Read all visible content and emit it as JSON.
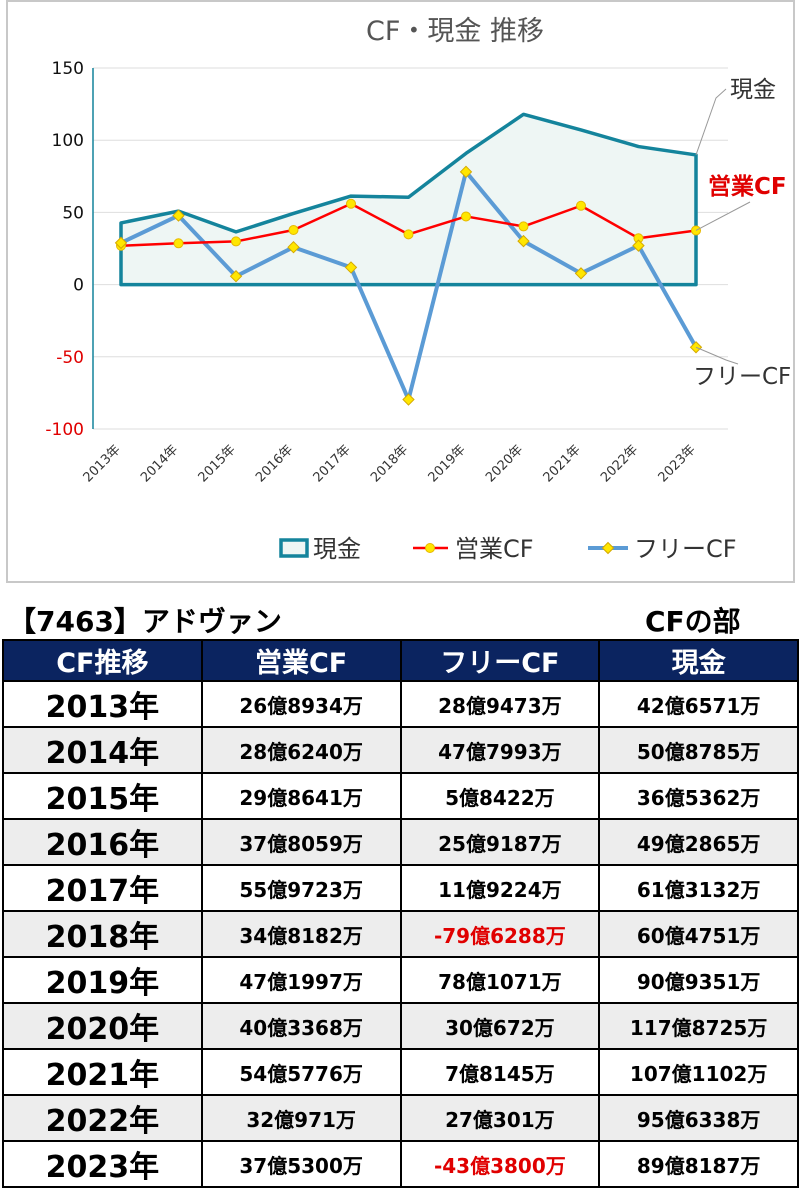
{
  "chart_data": {
    "type": "line",
    "title": "CF・現金 推移",
    "categories": [
      "2013年",
      "2014年",
      "2015年",
      "2016年",
      "2017年",
      "2018年",
      "2019年",
      "2020年",
      "2021年",
      "2022年",
      "2023年"
    ],
    "ylim": [
      -100,
      150
    ],
    "yticks": [
      "150",
      "100",
      "50",
      "0",
      "-50",
      "-100"
    ],
    "grid": true,
    "legend_position": "bottom",
    "series": [
      {
        "name": "現金",
        "style": "area",
        "color": "#14849c",
        "values": [
          42.7,
          50.9,
          36.5,
          49.3,
          61.3,
          60.5,
          90.9,
          117.9,
          107.1,
          95.6,
          89.8
        ]
      },
      {
        "name": "営業CF",
        "style": "line-markers",
        "color": "#ff0000",
        "values": [
          26.9,
          28.6,
          29.9,
          37.8,
          56.0,
          34.8,
          47.2,
          40.3,
          54.6,
          32.1,
          37.5
        ]
      },
      {
        "name": "フリーCF",
        "style": "line-markers",
        "color": "#5b9bd5",
        "values": [
          28.9,
          47.8,
          5.8,
          25.9,
          11.9,
          -79.6,
          78.1,
          30.1,
          7.8,
          27.0,
          -43.4
        ]
      }
    ],
    "annotations": [
      "現金",
      "営業CF",
      "フリーCF"
    ]
  },
  "caption": {
    "company": "【7463】アドヴァン",
    "section": "CFの部"
  },
  "table": {
    "headers": [
      "CF推移",
      "営業CF",
      "フリーCF",
      "現金"
    ],
    "rows": [
      {
        "year": "2013年",
        "op": "26億8934万",
        "free": "28億9473万",
        "cash": "42億6571万"
      },
      {
        "year": "2014年",
        "op": "28億6240万",
        "free": "47億7993万",
        "cash": "50億8785万"
      },
      {
        "year": "2015年",
        "op": "29億8641万",
        "free": "5億8422万",
        "cash": "36億5362万"
      },
      {
        "year": "2016年",
        "op": "37億8059万",
        "free": "25億9187万",
        "cash": "49億2865万"
      },
      {
        "year": "2017年",
        "op": "55億9723万",
        "free": "11億9224万",
        "cash": "61億3132万"
      },
      {
        "year": "2018年",
        "op": "34億8182万",
        "free": "-79億6288万",
        "cash": "60億4751万"
      },
      {
        "year": "2019年",
        "op": "47億1997万",
        "free": "78億1071万",
        "cash": "90億9351万"
      },
      {
        "year": "2020年",
        "op": "40億3368万",
        "free": "30億672万",
        "cash": "117億8725万"
      },
      {
        "year": "2021年",
        "op": "54億5776万",
        "free": "7億8145万",
        "cash": "107億1102万"
      },
      {
        "year": "2022年",
        "op": "32億971万",
        "free": "27億301万",
        "cash": "95億6338万"
      },
      {
        "year": "2023年",
        "op": "37億5300万",
        "free": "-43億3800万",
        "cash": "89億8187万"
      }
    ]
  }
}
